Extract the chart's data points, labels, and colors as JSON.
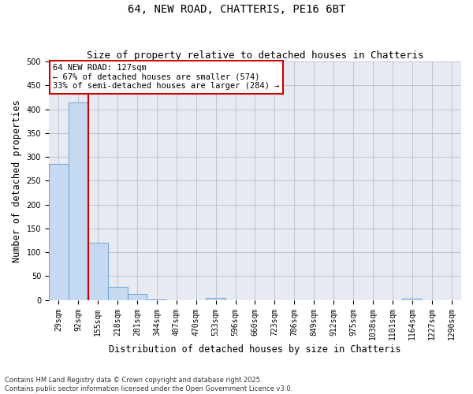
{
  "title": "64, NEW ROAD, CHATTERIS, PE16 6BT",
  "subtitle": "Size of property relative to detached houses in Chatteris",
  "xlabel": "Distribution of detached houses by size in Chatteris",
  "ylabel": "Number of detached properties",
  "bar_values": [
    285,
    415,
    120,
    28,
    13,
    1,
    0,
    0,
    5,
    0,
    0,
    0,
    0,
    0,
    0,
    0,
    0,
    0,
    3,
    0,
    0
  ],
  "categories": [
    "29sqm",
    "92sqm",
    "155sqm",
    "218sqm",
    "281sqm",
    "344sqm",
    "407sqm",
    "470sqm",
    "533sqm",
    "596sqm",
    "660sqm",
    "723sqm",
    "786sqm",
    "849sqm",
    "912sqm",
    "975sqm",
    "1038sqm",
    "1101sqm",
    "1164sqm",
    "1227sqm",
    "1290sqm"
  ],
  "bar_color": "#c5d9f0",
  "bar_edge_color": "#5b9bd5",
  "vline_x": 1.5,
  "vline_color": "#cc0000",
  "annotation_text": "64 NEW ROAD: 127sqm\n← 67% of detached houses are smaller (574)\n33% of semi-detached houses are larger (284) →",
  "annotation_box_color": "#cc0000",
  "ylim": [
    0,
    500
  ],
  "yticks": [
    0,
    50,
    100,
    150,
    200,
    250,
    300,
    350,
    400,
    450,
    500
  ],
  "grid_color": "#b0b4cc",
  "background_color": "#e8eaf2",
  "footnote": "Contains HM Land Registry data © Crown copyright and database right 2025.\nContains public sector information licensed under the Open Government Licence v3.0.",
  "title_fontsize": 10,
  "subtitle_fontsize": 9,
  "xlabel_fontsize": 8.5,
  "ylabel_fontsize": 8.5,
  "tick_fontsize": 7,
  "annotation_fontsize": 7.5,
  "footnote_fontsize": 6
}
